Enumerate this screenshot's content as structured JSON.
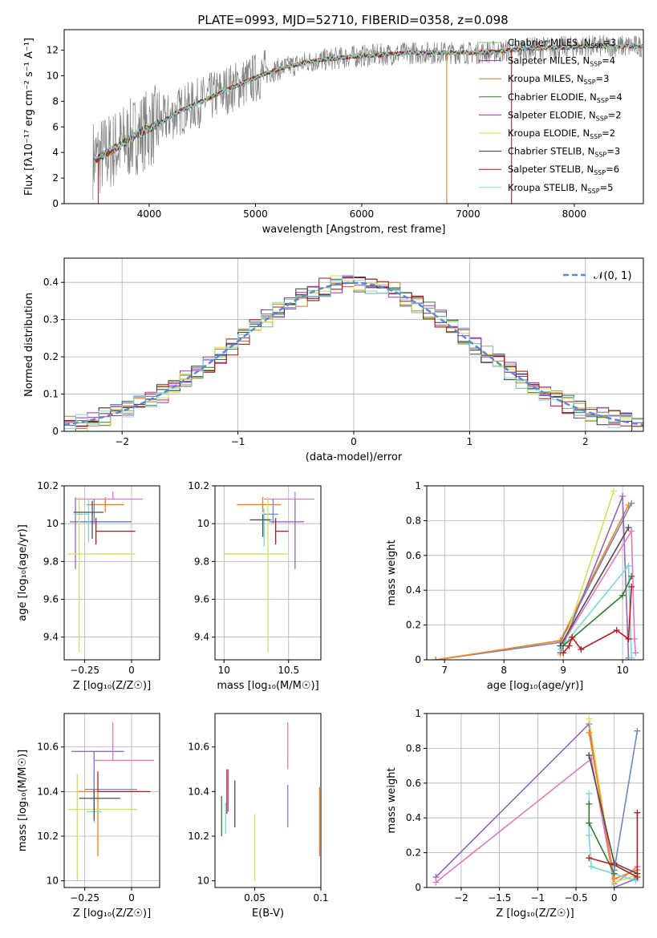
{
  "figure_title": "PLATE=0993, MJD=52710, FIBERID=0358, z=0.098",
  "series_colors": [
    "#77bb77",
    "#9b30b8",
    "#c87822",
    "#2e7d32",
    "#9b30b8",
    "#dddd33",
    "#333333",
    "#b01010",
    "#7fdcdc"
  ],
  "fit_colors": [
    "#ff7f0e",
    "#9467bd",
    "#e377c2",
    "#6a89cc",
    "#d4e157",
    "#76d7d7",
    "#b71c1c",
    "#4e4e4e"
  ],
  "chart_data": [
    {
      "id": "spectrum",
      "type": "line",
      "title": "PLATE=0993, MJD=52710, FIBERID=0358, z=0.098",
      "xlabel": "wavelength [Angstrom, rest frame]",
      "ylabel": "Flux [fλ10⁻¹⁷ erg cm⁻² s⁻¹ A⁻¹]",
      "xlim": [
        3200,
        8650
      ],
      "ylim": [
        0,
        13.6
      ],
      "xticks": [
        4000,
        5000,
        6000,
        7000,
        8000
      ],
      "yticks": [
        0,
        2,
        4,
        6,
        8,
        10,
        12
      ],
      "grid": false,
      "legend_position": "top-right",
      "legend": [
        {
          "label": "Chabrier MILES, N",
          "sub": "SSP",
          "n": "=3",
          "color": "#77bb77"
        },
        {
          "label": "Salpeter MILES, N",
          "sub": "SSP",
          "n": "=4",
          "color": "#9b30b8"
        },
        {
          "label": "Kroupa MILES, N",
          "sub": "SSP",
          "n": "=3",
          "color": "#c87822"
        },
        {
          "label": "Chabrier ELODIE, N",
          "sub": "SSP",
          "n": "=4",
          "color": "#2e7d32"
        },
        {
          "label": "Salpeter ELODIE, N",
          "sub": "SSP",
          "n": "=2",
          "color": "#9b30b8"
        },
        {
          "label": "Kroupa ELODIE, N",
          "sub": "SSP",
          "n": "=2",
          "color": "#dddd33"
        },
        {
          "label": "Chabrier STELIB, N",
          "sub": "SSP",
          "n": "=3",
          "color": "#333333"
        },
        {
          "label": "Salpeter STELIB, N",
          "sub": "SSP",
          "n": "=6",
          "color": "#b01010"
        },
        {
          "label": "Kroupa STELIB, N",
          "sub": "SSP",
          "n": "=5",
          "color": "#7fdcdc"
        }
      ],
      "continuum": {
        "x": [
          3500,
          3700,
          3900,
          4100,
          4300,
          4500,
          4700,
          4900,
          5100,
          5300,
          5500,
          5700,
          5900,
          6100,
          6300,
          6500,
          6700,
          6900,
          7100,
          7300,
          7500,
          7700,
          7900,
          8100,
          8300,
          8500
        ],
        "y": [
          3.5,
          4.4,
          5.5,
          6.3,
          7.3,
          8.0,
          8.8,
          9.5,
          10.2,
          10.7,
          11.1,
          11.3,
          11.5,
          11.6,
          11.7,
          11.8,
          11.8,
          11.8,
          11.8,
          11.9,
          12.1,
          12.2,
          12.2,
          12.3,
          12.3,
          12.3
        ]
      }
    },
    {
      "id": "residuals",
      "type": "step",
      "xlabel": "(data-model)/error",
      "ylabel": "Normed distribution",
      "xlim": [
        -2.5,
        2.5
      ],
      "ylim": [
        0,
        0.465
      ],
      "xticks": [
        -2,
        -1,
        0,
        1,
        2
      ],
      "yticks": [
        0.0,
        0.1,
        0.2,
        0.3,
        0.4
      ],
      "grid": true,
      "legend_position": "top-right",
      "legend_label": "𝒩(0, 1)",
      "gaussian": {
        "mean": 0,
        "sigma": 1
      },
      "bin_width": 0.1
    },
    {
      "id": "age-vs-Z",
      "type": "errorbar",
      "xlabel": "Z [log₁₀(Z/Z☉)]",
      "ylabel": "age  [log₁₀(age/yr)]",
      "xlim": [
        -0.36,
        0.15
      ],
      "ylim": [
        9.28,
        10.2
      ],
      "xticks": [
        -0.25,
        0.0
      ],
      "yticks": [
        9.4,
        9.6,
        9.8,
        10.0,
        10.2
      ],
      "grid": true,
      "points": [
        {
          "x": -0.14,
          "y": 10.1,
          "xerr": [
            0.1,
            0.1
          ],
          "yerr": [
            0.04,
            0.04
          ],
          "color": "#ff7f0e"
        },
        {
          "x": -0.3,
          "y": 10.01,
          "xerr": [
            0.03,
            0.3
          ],
          "yerr": [
            0.25,
            0.13
          ],
          "color": "#9467bd"
        },
        {
          "x": -0.1,
          "y": 10.13,
          "xerr": [
            0.2,
            0.16
          ],
          "yerr": [
            0.0,
            0.04
          ],
          "color": "#e377c2"
        },
        {
          "x": -0.2,
          "y": 10.01,
          "xerr": [
            0.1,
            0.18
          ],
          "yerr": [
            0.01,
            0.12
          ],
          "color": "#6a89cc"
        },
        {
          "x": -0.28,
          "y": 9.84,
          "xerr": [
            0.06,
            0.3
          ],
          "yerr": [
            0.52,
            0.3
          ],
          "color": "#d4e157"
        },
        {
          "x": -0.23,
          "y": 10.05,
          "xerr": [
            0.08,
            0.0
          ],
          "yerr": [
            0.15,
            0.08
          ],
          "color": "#76d7d7"
        },
        {
          "x": -0.19,
          "y": 9.96,
          "xerr": [
            0.0,
            0.21
          ],
          "yerr": [
            0.07,
            0.07
          ],
          "color": "#b71c1c"
        },
        {
          "x": -0.21,
          "y": 10.06,
          "xerr": [
            0.1,
            0.06
          ],
          "yerr": [
            0.14,
            0.06
          ],
          "color": "#4e4e4e"
        }
      ]
    },
    {
      "id": "age-vs-mass",
      "type": "errorbar",
      "xlabel": "mass [log₁₀(M/M☉)]",
      "ylabel": "",
      "xlim": [
        9.93,
        10.75
      ],
      "ylim": [
        9.28,
        10.2
      ],
      "xticks": [
        10.0,
        10.5
      ],
      "yticks": [
        9.4,
        9.6,
        9.8,
        10.0,
        10.2
      ],
      "grid": true,
      "points": [
        {
          "x": 10.3,
          "y": 10.1,
          "xerr": [
            0.2,
            0.14
          ],
          "yerr": [
            0.04,
            0.04
          ],
          "color": "#ff7f0e"
        },
        {
          "x": 10.55,
          "y": 10.01,
          "xerr": [
            0.2,
            0.07
          ],
          "yerr": [
            0.25,
            0.13
          ],
          "color": "#9467bd"
        },
        {
          "x": 10.55,
          "y": 10.13,
          "xerr": [
            0.24,
            0.15
          ],
          "yerr": [
            0.0,
            0.04
          ],
          "color": "#e377c2"
        },
        {
          "x": 10.38,
          "y": 10.05,
          "xerr": [
            0.07,
            0.04
          ],
          "yerr": [
            0.05,
            0.08
          ],
          "color": "#6a89cc"
        },
        {
          "x": 10.34,
          "y": 9.84,
          "xerr": [
            0.34,
            0.16
          ],
          "yerr": [
            0.52,
            0.3
          ],
          "color": "#d4e157"
        },
        {
          "x": 10.31,
          "y": 10.02,
          "xerr": [
            0.04,
            0.08
          ],
          "yerr": [
            0.14,
            0.06
          ],
          "color": "#76d7d7"
        },
        {
          "x": 10.4,
          "y": 9.96,
          "xerr": [
            0.0,
            0.1
          ],
          "yerr": [
            0.07,
            0.07
          ],
          "color": "#b71c1c"
        },
        {
          "x": 10.3,
          "y": 10.02,
          "xerr": [
            0.1,
            0.06
          ],
          "yerr": [
            0.09,
            0.03
          ],
          "color": "#4e4e4e"
        }
      ]
    },
    {
      "id": "weight-vs-age",
      "type": "line",
      "xlabel": "age  [log₁₀(age/yr)]",
      "ylabel": "mass weight",
      "xlim": [
        6.7,
        10.35
      ],
      "ylim": [
        0,
        1.0
      ],
      "xticks": [
        7,
        8,
        9,
        10
      ],
      "yticks": [
        0.0,
        0.2,
        0.4,
        0.6,
        0.8,
        1.0
      ],
      "grid": true,
      "series": [
        {
          "color": "#6a89cc",
          "x": [
            6.85,
            8.95,
            10.15
          ],
          "y": [
            0.0,
            0.1,
            0.9
          ]
        },
        {
          "color": "#ff7f0e",
          "x": [
            6.85,
            8.95,
            10.1
          ],
          "y": [
            0.0,
            0.11,
            0.89
          ]
        },
        {
          "color": "#d4e157",
          "x": [
            8.95,
            9.85
          ],
          "y": [
            0.03,
            0.97
          ]
        },
        {
          "color": "#9467bd",
          "x": [
            8.95,
            10.0,
            10.1
          ],
          "y": [
            0.04,
            0.94,
            0.01
          ]
        },
        {
          "color": "#e377c2",
          "x": [
            9.0,
            10.15,
            10.2,
            10.22
          ],
          "y": [
            0.1,
            0.74,
            0.12,
            0.04
          ]
        },
        {
          "color": "#76d7d7",
          "x": [
            8.95,
            10.1,
            10.15
          ],
          "y": [
            0.06,
            0.54,
            0.01
          ]
        },
        {
          "color": "#2e7d32",
          "x": [
            9.0,
            10.0,
            10.15
          ],
          "y": [
            0.08,
            0.37,
            0.48
          ]
        },
        {
          "color": "#4e4e4e",
          "x": [
            8.95,
            10.1
          ],
          "y": [
            0.08,
            0.76
          ]
        },
        {
          "color": "#b71c1c",
          "x": [
            9.0,
            9.1,
            9.15,
            9.3,
            9.9,
            10.1,
            10.15
          ],
          "y": [
            0.04,
            0.08,
            0.13,
            0.06,
            0.17,
            0.12,
            0.42
          ]
        }
      ]
    },
    {
      "id": "mass-vs-Z",
      "type": "errorbar",
      "xlabel": "Z [log₁₀(Z/Z☉)]",
      "ylabel": "mass [log₁₀(M/M☉)]",
      "xlim": [
        -0.36,
        0.15
      ],
      "ylim": [
        9.97,
        10.75
      ],
      "xticks": [
        -0.25,
        0.0
      ],
      "yticks": [
        10.0,
        10.2,
        10.4,
        10.6
      ],
      "grid": true,
      "points": [
        {
          "x": -0.18,
          "y": 10.4,
          "xerr": [
            0.11,
            0.23
          ],
          "yerr": [
            0.29,
            0.0
          ],
          "color": "#ff7f0e"
        },
        {
          "x": -0.2,
          "y": 10.58,
          "xerr": [
            0.12,
            0.16
          ],
          "yerr": [
            0.19,
            0.0
          ],
          "color": "#9467bd"
        },
        {
          "x": -0.1,
          "y": 10.54,
          "xerr": [
            0.1,
            0.22
          ],
          "yerr": [
            0.0,
            0.17
          ],
          "color": "#e377c2"
        },
        {
          "x": -0.2,
          "y": 10.41,
          "xerr": [
            0.05,
            0.23
          ],
          "yerr": [
            0.09,
            0.07
          ],
          "color": "#6a89cc"
        },
        {
          "x": -0.29,
          "y": 10.32,
          "xerr": [
            0.05,
            0.32
          ],
          "yerr": [
            0.32,
            0.16
          ],
          "color": "#d4e157"
        },
        {
          "x": -0.2,
          "y": 10.31,
          "xerr": [
            0.04,
            0.04
          ],
          "yerr": [
            0.05,
            0.05
          ],
          "color": "#76d7d7"
        },
        {
          "x": -0.18,
          "y": 10.4,
          "xerr": [
            0.0,
            0.28
          ],
          "yerr": [
            0.0,
            0.09
          ],
          "color": "#b71c1c"
        },
        {
          "x": -0.2,
          "y": 10.37,
          "xerr": [
            0.08,
            0.14
          ],
          "yerr": [
            0.1,
            0.04
          ],
          "color": "#4e4e4e"
        }
      ]
    },
    {
      "id": "mass-vs-ebv",
      "type": "errorbar",
      "xlabel": "E(B-V)",
      "ylabel": "",
      "xlim": [
        0.02,
        0.1
      ],
      "ylim": [
        9.97,
        10.75
      ],
      "xticks": [
        0.05,
        0.1
      ],
      "yticks": [
        10.0,
        10.2,
        10.4,
        10.6
      ],
      "grid": false,
      "points": [
        {
          "x": 0.099,
          "y": 10.31,
          "yerr": [
            0.2,
            0.11
          ],
          "color": "#ff7f0e"
        },
        {
          "x": 0.03,
          "y": 10.44,
          "yerr": [
            0.13,
            0.06
          ],
          "color": "#9467bd"
        },
        {
          "x": 0.075,
          "y": 10.6,
          "yerr": [
            0.1,
            0.11
          ],
          "color": "#e377c2"
        },
        {
          "x": 0.075,
          "y": 10.36,
          "yerr": [
            0.12,
            0.07
          ],
          "color": "#6a89cc"
        },
        {
          "x": 0.05,
          "y": 10.2,
          "yerr": [
            0.2,
            0.1
          ],
          "color": "#d4e157"
        },
        {
          "x": 0.028,
          "y": 10.29,
          "yerr": [
            0.08,
            0.06
          ],
          "color": "#76d7d7"
        },
        {
          "x": 0.029,
          "y": 10.4,
          "yerr": [
            0.1,
            0.1
          ],
          "color": "#b71c1c"
        },
        {
          "x": 0.035,
          "y": 10.34,
          "yerr": [
            0.1,
            0.11
          ],
          "color": "#4e4e4e"
        },
        {
          "x": 0.025,
          "y": 10.29,
          "yerr": [
            0.09,
            0.09
          ],
          "color": "#2e7d32"
        }
      ]
    },
    {
      "id": "weight-vs-Z",
      "type": "line",
      "xlabel": "Z [log₁₀(Z/Z☉)]",
      "ylabel": "mass weight",
      "xlim": [
        -2.45,
        0.38
      ],
      "ylim": [
        0,
        1.0
      ],
      "xticks": [
        -2.0,
        -1.5,
        -1.0,
        -0.5,
        0.0
      ],
      "yticks": [
        0.0,
        0.2,
        0.4,
        0.6,
        0.8,
        1.0
      ],
      "grid": true,
      "series": [
        {
          "color": "#9467bd",
          "x": [
            -2.33,
            -0.33,
            0.0,
            0.28
          ],
          "y": [
            0.06,
            0.94,
            0.0,
            0.05
          ]
        },
        {
          "color": "#e377c2",
          "x": [
            -2.33,
            -0.3,
            0.0,
            0.3
          ],
          "y": [
            0.03,
            0.74,
            0.02,
            0.12
          ]
        },
        {
          "color": "#d4e157",
          "x": [
            -0.33,
            0.0,
            0.3
          ],
          "y": [
            0.97,
            0.03,
            0.07
          ]
        },
        {
          "color": "#ff7f0e",
          "x": [
            -0.33,
            0.0,
            0.3
          ],
          "y": [
            0.89,
            0.05,
            0.1
          ]
        },
        {
          "color": "#4e4e4e",
          "x": [
            -0.33,
            0.0,
            0.3
          ],
          "y": [
            0.76,
            0.14,
            0.08
          ]
        },
        {
          "color": "#76d7d7",
          "x": [
            -0.33,
            -0.33,
            -0.3,
            0.28
          ],
          "y": [
            0.54,
            0.3,
            0.12,
            0.04
          ]
        },
        {
          "color": "#2e7d32",
          "x": [
            -0.33,
            -0.33,
            0.0
          ],
          "y": [
            0.48,
            0.37,
            0.08
          ]
        },
        {
          "color": "#b71c1c",
          "x": [
            -0.33,
            0.0,
            0.3,
            0.3
          ],
          "y": [
            0.17,
            0.13,
            0.06,
            0.43
          ]
        },
        {
          "color": "#6a89cc",
          "x": [
            0.0,
            0.3
          ],
          "y": [
            0.1,
            0.9
          ]
        }
      ]
    }
  ]
}
